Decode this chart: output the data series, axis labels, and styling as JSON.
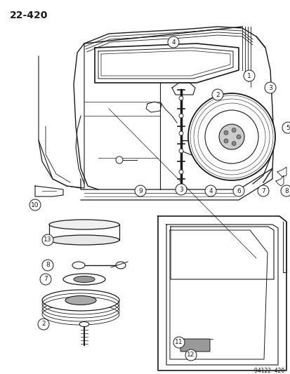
{
  "page_number": "22-420",
  "catalog_number": "94122  420",
  "bg": "#ffffff",
  "lc": "#1a1a1a",
  "fig_w": 4.14,
  "fig_h": 5.33,
  "dpi": 100
}
